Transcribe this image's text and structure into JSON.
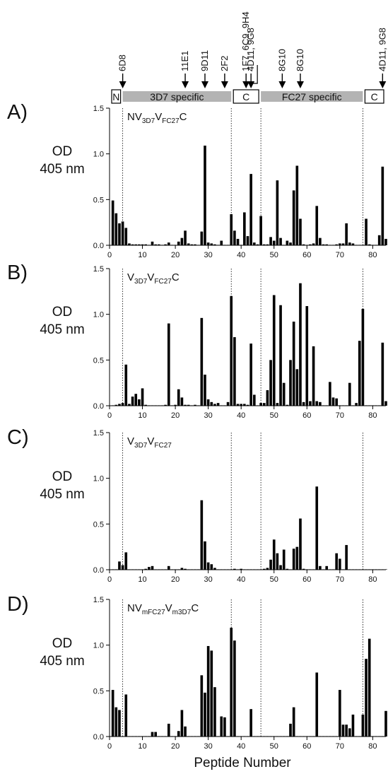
{
  "figure": {
    "x_axis_label": "Peptide Number",
    "y_label_line1": "OD",
    "y_label_line2": "405 nm",
    "x_ticks": [
      0,
      10,
      20,
      30,
      40,
      50,
      60,
      70,
      80
    ],
    "y_ticks": [
      0.0,
      0.5,
      1.0,
      1.5
    ],
    "y_tick_labels": [
      "0.0",
      "0.5",
      "1.0",
      "1.5"
    ],
    "xlim": [
      0,
      84
    ],
    "ylim": [
      0,
      1.5
    ],
    "divider_positions": [
      4,
      37,
      46,
      77
    ],
    "bar_color": "#000000"
  },
  "schematic": {
    "segments": [
      {
        "label": "N",
        "start": 0,
        "end": 4,
        "style": "white-box"
      },
      {
        "label": "3D7 specific",
        "start": 4,
        "end": 37,
        "style": "gray-bar"
      },
      {
        "label": "C",
        "start": 37,
        "end": 46,
        "style": "white-box"
      },
      {
        "label": "FC27 specific",
        "start": 46,
        "end": 77,
        "style": "gray-bar"
      },
      {
        "label": "C",
        "start": 77,
        "end": 84,
        "style": "white-box"
      }
    ],
    "antibody_markers": [
      {
        "label": "6D8",
        "x": 4
      },
      {
        "label": "11E1",
        "x": 23
      },
      {
        "label": "9D11",
        "x": 29
      },
      {
        "label": "2F2",
        "x": 35
      },
      {
        "label": "1F7, 6C9, 9H4",
        "x": 41.5
      },
      {
        "label": "4D11, 9G8",
        "x": 43
      },
      {
        "label": "8G10",
        "x": 52.5
      },
      {
        "label": "8G10",
        "x": 58
      },
      {
        "label": "4D11, 9G8",
        "x": 83
      }
    ]
  },
  "chart_data": [
    {
      "type": "bar",
      "panel": "A)",
      "construct_label": {
        "base": "NV",
        "sub1": "3D7",
        "mid": "V",
        "sub2": "FC27",
        "tail": "C"
      },
      "xlabel": "Peptide Number",
      "ylabel": "OD 405 nm",
      "ylim": [
        0,
        1.5
      ],
      "x": [
        1,
        2,
        3,
        4,
        5,
        6,
        7,
        8,
        9,
        10,
        11,
        12,
        13,
        14,
        15,
        16,
        17,
        18,
        19,
        20,
        21,
        22,
        23,
        24,
        25,
        26,
        27,
        28,
        29,
        30,
        31,
        32,
        33,
        34,
        35,
        36,
        37,
        38,
        39,
        40,
        41,
        42,
        43,
        44,
        45,
        46,
        47,
        48,
        49,
        50,
        51,
        52,
        53,
        54,
        55,
        56,
        57,
        58,
        59,
        60,
        61,
        62,
        63,
        64,
        65,
        66,
        67,
        68,
        69,
        70,
        71,
        72,
        73,
        74,
        75,
        76,
        77,
        78,
        79,
        80,
        81,
        82,
        83,
        84
      ],
      "values": [
        0.49,
        0.35,
        0.24,
        0.26,
        0.19,
        0.02,
        0.01,
        0.01,
        0.01,
        0.01,
        0.01,
        0.0,
        0.04,
        0.01,
        0.01,
        0.0,
        0.01,
        0.03,
        0.0,
        0.0,
        0.04,
        0.08,
        0.16,
        0.02,
        0.01,
        0.01,
        0.0,
        0.15,
        1.09,
        0.03,
        0.02,
        0.01,
        0.0,
        0.05,
        0.0,
        0.0,
        0.34,
        0.16,
        0.07,
        0.0,
        0.36,
        0.1,
        0.78,
        0.03,
        0.01,
        0.32,
        0.01,
        0.01,
        0.09,
        0.05,
        0.71,
        0.08,
        0.0,
        0.05,
        0.03,
        0.6,
        0.87,
        0.29,
        0.01,
        0.0,
        0.01,
        0.02,
        0.43,
        0.08,
        0.01,
        0.01,
        0.0,
        0.0,
        0.01,
        0.02,
        0.02,
        0.24,
        0.03,
        0.02,
        0.0,
        0.0,
        0.0,
        0.29,
        0.01,
        0.0,
        0.0,
        0.11,
        0.86,
        0.07
      ]
    },
    {
      "type": "bar",
      "panel": "B)",
      "construct_label": {
        "base": "V",
        "sub1": "3D7",
        "mid": "V",
        "sub2": "FC27",
        "tail": "C"
      },
      "xlabel": "Peptide Number",
      "ylabel": "OD 405 nm",
      "ylim": [
        0,
        1.5
      ],
      "x": [
        1,
        2,
        3,
        4,
        5,
        6,
        7,
        8,
        9,
        10,
        11,
        12,
        13,
        14,
        15,
        16,
        17,
        18,
        19,
        20,
        21,
        22,
        23,
        24,
        25,
        26,
        27,
        28,
        29,
        30,
        31,
        32,
        33,
        34,
        35,
        36,
        37,
        38,
        39,
        40,
        41,
        42,
        43,
        44,
        45,
        46,
        47,
        48,
        49,
        50,
        51,
        52,
        53,
        54,
        55,
        56,
        57,
        58,
        59,
        60,
        61,
        62,
        63,
        64,
        65,
        66,
        67,
        68,
        69,
        70,
        71,
        72,
        73,
        74,
        75,
        76,
        77,
        78,
        79,
        80,
        81,
        82,
        83,
        84
      ],
      "values": [
        0.0,
        0.01,
        0.02,
        0.03,
        0.45,
        0.02,
        0.1,
        0.13,
        0.07,
        0.19,
        0.01,
        0.0,
        0.0,
        0.0,
        0.0,
        0.0,
        0.01,
        0.9,
        0.0,
        0.01,
        0.18,
        0.09,
        0.01,
        0.01,
        0.0,
        0.01,
        0.0,
        0.96,
        0.34,
        0.07,
        0.04,
        0.02,
        0.03,
        0.0,
        0.0,
        0.04,
        1.2,
        0.75,
        0.02,
        0.02,
        0.02,
        0.01,
        0.68,
        0.12,
        0.0,
        0.03,
        0.03,
        0.17,
        0.5,
        1.21,
        0.03,
        1.1,
        0.25,
        0.01,
        0.5,
        0.92,
        0.4,
        1.34,
        0.04,
        1.09,
        0.05,
        0.65,
        0.05,
        0.04,
        0.0,
        0.0,
        0.26,
        0.09,
        0.08,
        0.0,
        0.0,
        0.0,
        0.25,
        0.0,
        0.03,
        0.71,
        1.06,
        0.0,
        0.0,
        0.0,
        0.0,
        0.0,
        0.69,
        0.05
      ]
    },
    {
      "type": "bar",
      "panel": "C)",
      "construct_label": {
        "base": "V",
        "sub1": "3D7",
        "mid": "V",
        "sub2": "FC27",
        "tail": ""
      },
      "xlabel": "Peptide Number",
      "ylabel": "OD 405 nm",
      "ylim": [
        0,
        1.5
      ],
      "x": [
        1,
        2,
        3,
        4,
        5,
        6,
        7,
        8,
        9,
        10,
        11,
        12,
        13,
        14,
        15,
        16,
        17,
        18,
        19,
        20,
        21,
        22,
        23,
        24,
        25,
        26,
        27,
        28,
        29,
        30,
        31,
        32,
        33,
        34,
        35,
        36,
        37,
        38,
        39,
        40,
        41,
        42,
        43,
        44,
        45,
        46,
        47,
        48,
        49,
        50,
        51,
        52,
        53,
        54,
        55,
        56,
        57,
        58,
        59,
        60,
        61,
        62,
        63,
        64,
        65,
        66,
        67,
        68,
        69,
        70,
        71,
        72,
        73,
        74,
        75,
        76,
        77,
        78,
        79,
        80,
        81,
        82,
        83,
        84
      ],
      "values": [
        0.0,
        0.0,
        0.09,
        0.05,
        0.19,
        0.0,
        0.0,
        0.0,
        0.0,
        0.0,
        0.01,
        0.03,
        0.04,
        0.0,
        0.0,
        0.0,
        0.0,
        0.04,
        0.0,
        0.0,
        0.0,
        0.02,
        0.01,
        0.0,
        0.0,
        0.0,
        0.0,
        0.76,
        0.31,
        0.08,
        0.06,
        0.02,
        0.0,
        0.0,
        0.0,
        0.0,
        0.0,
        0.01,
        0.0,
        0.01,
        0.0,
        0.0,
        0.0,
        0.0,
        0.0,
        0.0,
        0.01,
        0.02,
        0.11,
        0.33,
        0.18,
        0.05,
        0.22,
        0.01,
        0.0,
        0.23,
        0.25,
        0.56,
        0.01,
        0.0,
        0.0,
        0.0,
        0.91,
        0.04,
        0.0,
        0.04,
        0.0,
        0.0,
        0.18,
        0.12,
        0.0,
        0.27,
        0.0,
        0.0,
        0.0,
        0.0,
        0.0,
        0.0,
        0.0,
        0.0,
        0.0,
        0.0,
        0.0,
        0.0
      ]
    },
    {
      "type": "bar",
      "panel": "D)",
      "construct_label": {
        "base": "NV",
        "sub1": "mFC27",
        "mid": "V",
        "sub2": "m3D7",
        "tail": "C"
      },
      "xlabel": "Peptide Number",
      "ylabel": "OD 405 nm",
      "ylim": [
        0,
        1.5
      ],
      "x": [
        1,
        2,
        3,
        4,
        5,
        6,
        7,
        8,
        9,
        10,
        11,
        12,
        13,
        14,
        15,
        16,
        17,
        18,
        19,
        20,
        21,
        22,
        23,
        24,
        25,
        26,
        27,
        28,
        29,
        30,
        31,
        32,
        33,
        34,
        35,
        36,
        37,
        38,
        39,
        40,
        41,
        42,
        43,
        44,
        45,
        46,
        47,
        48,
        49,
        50,
        51,
        52,
        53,
        54,
        55,
        56,
        57,
        58,
        59,
        60,
        61,
        62,
        63,
        64,
        65,
        66,
        67,
        68,
        69,
        70,
        71,
        72,
        73,
        74,
        75,
        76,
        77,
        78,
        79,
        80,
        81,
        82,
        83,
        84
      ],
      "values": [
        0.51,
        0.32,
        0.29,
        0.0,
        0.46,
        0.0,
        0.0,
        0.0,
        0.0,
        0.0,
        0.0,
        0.0,
        0.05,
        0.05,
        0.0,
        0.0,
        0.0,
        0.14,
        0.0,
        0.0,
        0.06,
        0.29,
        0.11,
        0.0,
        0.0,
        0.0,
        0.0,
        0.67,
        0.48,
        0.99,
        0.94,
        0.54,
        0.0,
        0.22,
        0.21,
        0.0,
        1.19,
        1.05,
        0.0,
        0.0,
        0.0,
        0.0,
        0.3,
        0.0,
        0.0,
        0.0,
        0.0,
        0.0,
        0.0,
        0.0,
        0.0,
        0.0,
        0.0,
        0.0,
        0.14,
        0.32,
        0.0,
        0.0,
        0.0,
        0.0,
        0.0,
        0.0,
        0.7,
        0.0,
        0.0,
        0.0,
        0.0,
        0.0,
        0.0,
        0.51,
        0.13,
        0.13,
        0.09,
        0.24,
        0.0,
        0.0,
        0.24,
        0.85,
        1.07,
        0.0,
        0.0,
        0.0,
        0.0,
        0.28
      ]
    }
  ]
}
